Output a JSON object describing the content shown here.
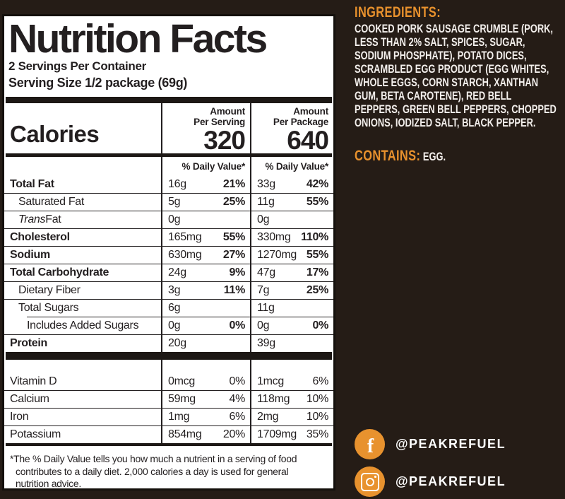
{
  "colors": {
    "background": "#251c16",
    "accent_orange": "#e8912d",
    "label_text": "#231f20",
    "white_text": "#f3efec"
  },
  "label": {
    "title": "Nutrition Facts",
    "servings_per_container": "2 Servings Per Container",
    "serving_size": "Serving Size 1/2 package (69g)",
    "calories": {
      "name": "Calories",
      "columns": [
        {
          "header_line1": "Amount",
          "header_line2": "Per Serving",
          "value": "320"
        },
        {
          "header_line1": "Amount",
          "header_line2": "Per Package",
          "value": "640"
        }
      ]
    },
    "daily_value_header": "% Daily Value*",
    "nutrients": [
      {
        "name": "Total Fat",
        "serving_amount": "16g",
        "serving_dv": "21%",
        "package_amount": "33g",
        "package_dv": "42%"
      },
      {
        "name": "Saturated Fat",
        "serving_amount": "5g",
        "serving_dv": "25%",
        "package_amount": "11g",
        "package_dv": "55%"
      },
      {
        "name_italic": "Trans",
        "name": " Fat",
        "serving_amount": "0g",
        "serving_dv": "",
        "package_amount": "0g",
        "package_dv": ""
      },
      {
        "name": "Cholesterol",
        "serving_amount": "165mg",
        "serving_dv": "55%",
        "package_amount": "330mg",
        "package_dv": "110%"
      },
      {
        "name": "Sodium",
        "serving_amount": "630mg",
        "serving_dv": "27%",
        "package_amount": "1270mg",
        "package_dv": "55%"
      },
      {
        "name": "Total Carbohydrate",
        "serving_amount": "24g",
        "serving_dv": "9%",
        "package_amount": "47g",
        "package_dv": "17%"
      },
      {
        "name": "Dietary Fiber",
        "serving_amount": "3g",
        "serving_dv": "11%",
        "package_amount": "7g",
        "package_dv": "25%"
      },
      {
        "name": "Total Sugars",
        "serving_amount": "6g",
        "serving_dv": "",
        "package_amount": "11g",
        "package_dv": ""
      },
      {
        "name": "Includes Added Sugars",
        "serving_amount": "0g",
        "serving_dv": "0%",
        "package_amount": "0g",
        "package_dv": "0%"
      },
      {
        "name": "Protein",
        "serving_amount": "20g",
        "serving_dv": "",
        "package_amount": "39g",
        "package_dv": ""
      }
    ],
    "vitamins": [
      {
        "name": "Vitamin D",
        "serving_amount": "0mcg",
        "serving_dv": "0%",
        "package_amount": "1mcg",
        "package_dv": "6%"
      },
      {
        "name": "Calcium",
        "serving_amount": "59mg",
        "serving_dv": "4%",
        "package_amount": "118mg",
        "package_dv": "10%"
      },
      {
        "name": "Iron",
        "serving_amount": "1mg",
        "serving_dv": "6%",
        "package_amount": "2mg",
        "package_dv": "10%"
      },
      {
        "name": "Potassium",
        "serving_amount": "854mg",
        "serving_dv": "20%",
        "package_amount": "1709mg",
        "package_dv": "35%"
      }
    ],
    "footnote": "*The % Daily Value tells you how much a nutrient in a serving of food contributes to a daily diet. 2,000 calories a day is used for general nutrition advice."
  },
  "right_panel": {
    "ingredients_heading": "INGREDIENTS:",
    "ingredients_text": "COOKED PORK SAUSAGE CRUMBLE (PORK, LESS THAN 2% SALT, SPICES, SUGAR, SODIUM PHOSPHATE), POTATO DICES, SCRAMBLED EGG PRODUCT (EGG WHITES, WHOLE EGGS, CORN STARCH, XANTHAN GUM, BETA CAROTENE), RED BELL PEPPERS, GREEN BELL PEPPERS, CHOPPED ONIONS, IODIZED SALT, BLACK PEPPER.",
    "contains_heading": "CONTAINS:",
    "contains_text": "EGG.",
    "social": [
      {
        "network": "facebook",
        "handle": "@PEAKREFUEL"
      },
      {
        "network": "instagram",
        "handle": "@PEAKREFUEL"
      }
    ]
  }
}
